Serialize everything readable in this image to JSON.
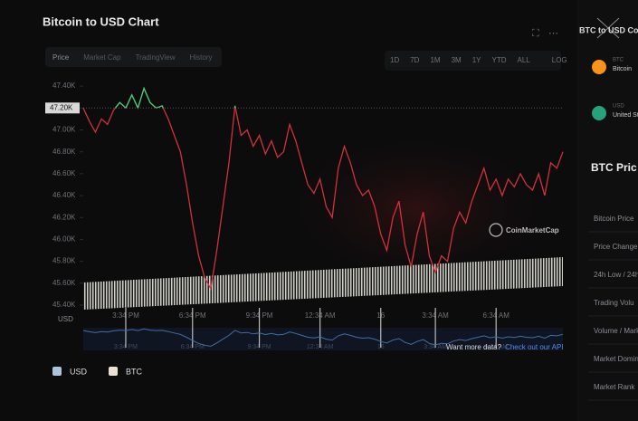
{
  "chart_data": {
    "type": "line",
    "title": "Bitcoin to USD Chart",
    "tabs": [
      "Price",
      "Market Cap",
      "TradingView",
      "History"
    ],
    "ranges": [
      "1D",
      "7D",
      "1M",
      "3M",
      "1Y",
      "YTD",
      "ALL",
      "LOG"
    ],
    "y_label": "USD",
    "watermark": "CoinMarketCap",
    "api_note": "Want more data?",
    "api_link": "Check out our API",
    "legend": [
      {
        "name": "USD",
        "color": "#a9c4dc"
      },
      {
        "name": "BTC",
        "color": "#e8e2cf"
      }
    ],
    "ref_line": {
      "value": 47200,
      "label": "47.20K"
    },
    "up_color": "#3fd07a",
    "nav_color": "#3f6fa8",
    "categories": [
      null,
      null,
      null,
      null,
      null,
      null,
      null,
      "3:34 PM",
      null,
      null,
      null,
      null,
      null,
      null,
      null,
      null,
      null,
      null,
      "6:34 PM",
      null,
      null,
      null,
      null,
      null,
      null,
      null,
      null,
      null,
      null,
      "9:34 PM",
      null,
      null,
      null,
      null,
      null,
      null,
      null,
      null,
      null,
      "12:34 AM",
      null,
      null,
      null,
      null,
      null,
      null,
      null,
      null,
      null,
      "16",
      null,
      null,
      null,
      null,
      null,
      null,
      null,
      null,
      "3:34 AM",
      null,
      null,
      null,
      null,
      null,
      null,
      null,
      null,
      null,
      "6:34 AM",
      null,
      null,
      null,
      null,
      null,
      null,
      null,
      null,
      null,
      null,
      null
    ],
    "series": [
      {
        "name": "USD",
        "color": "#d0313a",
        "values": [
          47200,
          47080,
          46980,
          47100,
          47050,
          47180,
          47250,
          47200,
          47320,
          47200,
          47380,
          47250,
          47200,
          47220,
          47100,
          46950,
          46800,
          46500,
          46150,
          45850,
          45650,
          45550,
          45900,
          46300,
          46700,
          47220,
          46950,
          47000,
          46850,
          46950,
          46780,
          46900,
          46750,
          46800,
          47050,
          46900,
          46700,
          46500,
          46420,
          46550,
          46300,
          46200,
          46650,
          46850,
          46700,
          46500,
          46400,
          46450,
          46300,
          46050,
          45900,
          46200,
          46350,
          45950,
          45750,
          46050,
          46250,
          45850,
          45700,
          45850,
          45800,
          46100,
          46250,
          46150,
          46350,
          46500,
          46650,
          46450,
          46550,
          46400,
          46550,
          46480,
          46600,
          46500,
          46450,
          46600,
          46400,
          46700,
          46650,
          46800
        ]
      }
    ],
    "ylim": [
      45400,
      47500
    ],
    "yticks": [
      {
        "value": 45400,
        "label": "45.40K"
      },
      {
        "value": 45600,
        "label": "45.60K"
      },
      {
        "value": 45800,
        "label": "45.80K"
      },
      {
        "value": 46000,
        "label": "46.00K"
      },
      {
        "value": 46200,
        "label": "46.20K"
      },
      {
        "value": 46400,
        "label": "46.40K"
      },
      {
        "value": 46600,
        "label": "46.60K"
      },
      {
        "value": 46800,
        "label": "46.80K"
      },
      {
        "value": 47000,
        "label": "47.00K"
      },
      {
        "value": 47200,
        "label": "47.20K"
      },
      {
        "value": 47400,
        "label": "47.40K"
      }
    ],
    "side_panel": {
      "title": "BTC to USD Co",
      "coins": [
        {
          "symbol": "BTC",
          "name": "Bitcoin"
        },
        {
          "symbol": "USD",
          "name": "United St"
        }
      ],
      "stats_title": "BTC Pric",
      "stats": [
        "Bitcoin Price",
        "Price Change",
        "24h Low / 24h",
        "Trading Volu",
        "Volume / Mark",
        "Market Domin",
        "Market Rank"
      ]
    }
  }
}
